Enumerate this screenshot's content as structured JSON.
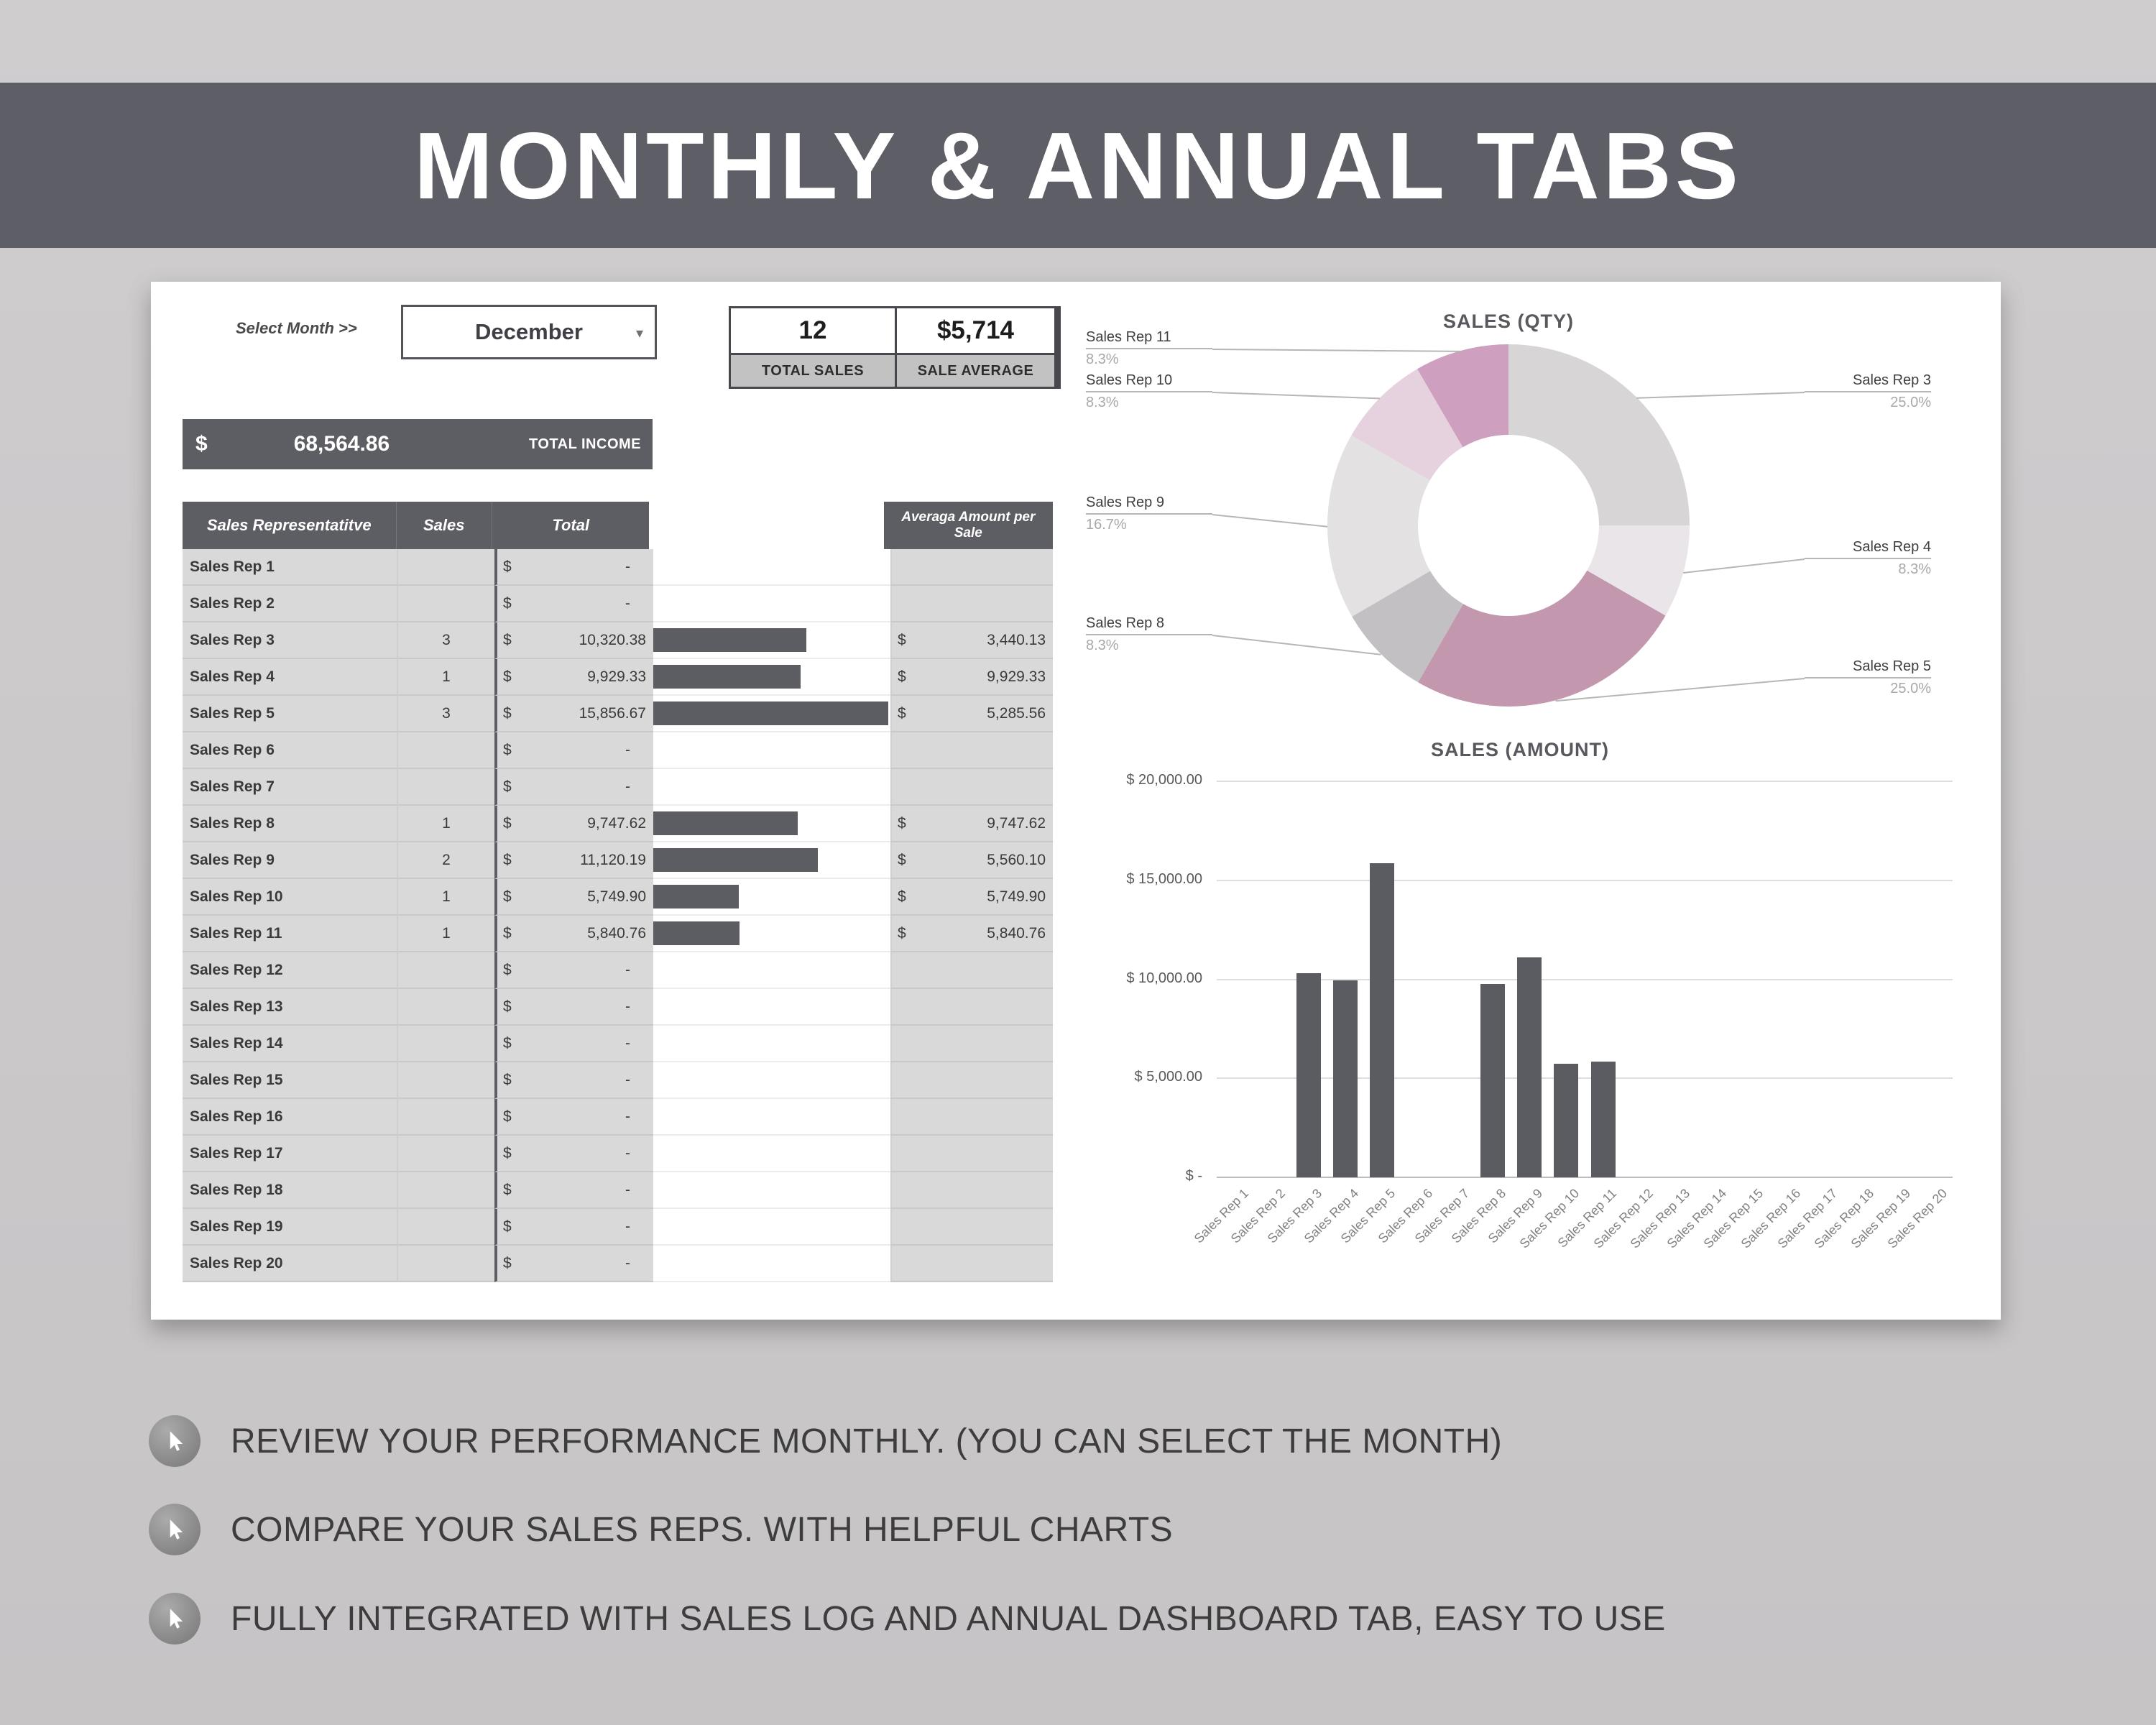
{
  "banner": {
    "title": "MONTHLY & ANNUAL TABS"
  },
  "panel": {
    "select_month_label": "Select Month >>",
    "month_dropdown": {
      "value": "December"
    },
    "stats": {
      "total_sales_value": "12",
      "total_sales_label": "TOTAL SALES",
      "sale_average_value": "$5,714",
      "sale_average_label": "SALE AVERAGE"
    },
    "total_income": {
      "currency": "$",
      "value": "68,564.86",
      "label": "TOTAL INCOME"
    }
  },
  "table": {
    "headers": {
      "rep": "Sales Representatitve",
      "sales": "Sales",
      "total": "Total",
      "avg": "Averaga Amount per Sale"
    },
    "currency": "$",
    "rows": [
      {
        "rep": "Sales Rep 1",
        "sales": "",
        "total": "-",
        "avg": "",
        "value": 0
      },
      {
        "rep": "Sales Rep 2",
        "sales": "",
        "total": "-",
        "avg": "",
        "value": 0
      },
      {
        "rep": "Sales Rep 3",
        "sales": "3",
        "total": "10,320.38",
        "avg": "3,440.13",
        "value": 10320.38
      },
      {
        "rep": "Sales Rep 4",
        "sales": "1",
        "total": "9,929.33",
        "avg": "9,929.33",
        "value": 9929.33
      },
      {
        "rep": "Sales Rep 5",
        "sales": "3",
        "total": "15,856.67",
        "avg": "5,285.56",
        "value": 15856.67
      },
      {
        "rep": "Sales Rep 6",
        "sales": "",
        "total": "-",
        "avg": "",
        "value": 0
      },
      {
        "rep": "Sales Rep 7",
        "sales": "",
        "total": "-",
        "avg": "",
        "value": 0
      },
      {
        "rep": "Sales Rep 8",
        "sales": "1",
        "total": "9,747.62",
        "avg": "9,747.62",
        "value": 9747.62
      },
      {
        "rep": "Sales Rep 9",
        "sales": "2",
        "total": "11,120.19",
        "avg": "5,560.10",
        "value": 11120.19
      },
      {
        "rep": "Sales Rep 10",
        "sales": "1",
        "total": "5,749.90",
        "avg": "5,749.90",
        "value": 5749.9
      },
      {
        "rep": "Sales Rep 11",
        "sales": "1",
        "total": "5,840.76",
        "avg": "5,840.76",
        "value": 5840.76
      },
      {
        "rep": "Sales Rep 12",
        "sales": "",
        "total": "-",
        "avg": "",
        "value": 0
      },
      {
        "rep": "Sales Rep 13",
        "sales": "",
        "total": "-",
        "avg": "",
        "value": 0
      },
      {
        "rep": "Sales Rep 14",
        "sales": "",
        "total": "-",
        "avg": "",
        "value": 0
      },
      {
        "rep": "Sales Rep 15",
        "sales": "",
        "total": "-",
        "avg": "",
        "value": 0
      },
      {
        "rep": "Sales Rep 16",
        "sales": "",
        "total": "-",
        "avg": "",
        "value": 0
      },
      {
        "rep": "Sales Rep 17",
        "sales": "",
        "total": "-",
        "avg": "",
        "value": 0
      },
      {
        "rep": "Sales Rep 18",
        "sales": "",
        "total": "-",
        "avg": "",
        "value": 0
      },
      {
        "rep": "Sales Rep 19",
        "sales": "",
        "total": "-",
        "avg": "",
        "value": 0
      },
      {
        "rep": "Sales Rep 20",
        "sales": "",
        "total": "-",
        "avg": "",
        "value": 0
      }
    ]
  },
  "chart_data": [
    {
      "type": "pie",
      "title": "SALES (QTY)",
      "segments": [
        {
          "label": "Sales Rep 3",
          "pct": 25.0,
          "pct_label": "25.0%",
          "color": "#d7d5d6"
        },
        {
          "label": "Sales Rep 4",
          "pct": 8.3,
          "pct_label": "8.3%",
          "color": "#eae5e8"
        },
        {
          "label": "Sales Rep 5",
          "pct": 25.0,
          "pct_label": "25.0%",
          "color": "#c397ae"
        },
        {
          "label": "Sales Rep 8",
          "pct": 8.3,
          "pct_label": "8.3%",
          "color": "#c2c0c2"
        },
        {
          "label": "Sales Rep 9",
          "pct": 16.7,
          "pct_label": "16.7%",
          "color": "#e3e1e2"
        },
        {
          "label": "Sales Rep 10",
          "pct": 8.3,
          "pct_label": "8.3%",
          "color": "#e6d2de"
        },
        {
          "label": "Sales Rep 11",
          "pct": 8.3,
          "pct_label": "8.3%",
          "color": "#cf9fc0"
        }
      ]
    },
    {
      "type": "bar",
      "title": "SALES (AMOUNT)",
      "categories": [
        "Sales Rep 1",
        "Sales Rep 2",
        "Sales Rep 3",
        "Sales Rep 4",
        "Sales Rep 5",
        "Sales Rep 6",
        "Sales Rep 7",
        "Sales Rep 8",
        "Sales Rep 9",
        "Sales Rep 10",
        "Sales Rep 11",
        "Sales Rep 12",
        "Sales Rep 13",
        "Sales Rep 14",
        "Sales Rep 15",
        "Sales Rep 16",
        "Sales Rep 17",
        "Sales Rep 18",
        "Sales Rep 19",
        "Sales Rep 20"
      ],
      "values": [
        0,
        0,
        10320.38,
        9929.33,
        15856.67,
        0,
        0,
        9747.62,
        11120.19,
        5749.9,
        5840.76,
        0,
        0,
        0,
        0,
        0,
        0,
        0,
        0,
        0
      ],
      "y_ticks": [
        "$ 20,000.00",
        "$ 15,000.00",
        "$ 10,000.00",
        "$ 5,000.00",
        "$ -"
      ],
      "ymax": 20000,
      "ylim": [
        0,
        20000
      ],
      "grid": true,
      "legend": false
    }
  ],
  "bullets": [
    {
      "text": "REVIEW YOUR PERFORMANCE MONTHLY. (YOU CAN SELECT THE MONTH)"
    },
    {
      "text": "COMPARE YOUR SALES REPS. WITH HELPFUL CHARTS"
    },
    {
      "text": "FULLY INTEGRATED WITH SALES LOG AND ANNUAL DASHBOARD TAB, EASY TO USE"
    }
  ]
}
